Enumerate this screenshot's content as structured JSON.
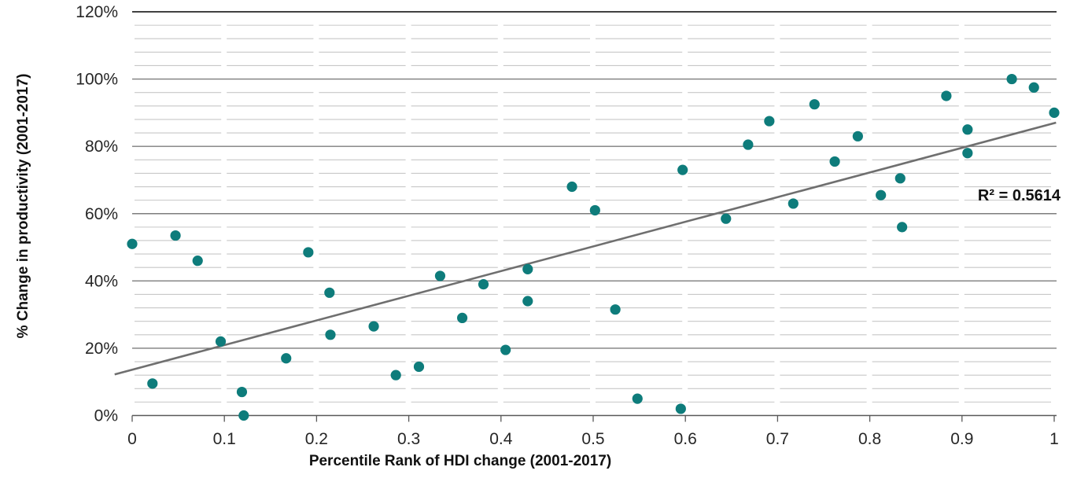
{
  "chart_data": {
    "type": "scatter",
    "title": "",
    "xlabel": "Percentile Rank of HDI change (2001-2017)",
    "ylabel": "% Change in productivity (2001-2017)",
    "legend": "none",
    "grid": "horizontal major + minor, no vertical gridlines",
    "xlim": [
      0,
      1
    ],
    "ylim_pct": [
      0,
      120
    ],
    "x_ticks": [
      "0",
      "0.1",
      "0.2",
      "0.3",
      "0.4",
      "0.5",
      "0.6",
      "0.7",
      "0.8",
      "0.9",
      "1"
    ],
    "y_ticks": [
      "0%",
      "20%",
      "40%",
      "60%",
      "80%",
      "100%",
      "120%"
    ],
    "y_major_step_pct": 20,
    "y_minor_step_pct": 4,
    "points": [
      [
        0.0,
        51.0
      ],
      [
        0.022,
        9.5
      ],
      [
        0.047,
        53.5
      ],
      [
        0.071,
        46.0
      ],
      [
        0.096,
        22.0
      ],
      [
        0.119,
        7.0
      ],
      [
        0.121,
        0.0
      ],
      [
        0.167,
        17.0
      ],
      [
        0.191,
        48.5
      ],
      [
        0.214,
        36.5
      ],
      [
        0.215,
        24.0
      ],
      [
        0.262,
        26.5
      ],
      [
        0.286,
        12.0
      ],
      [
        0.311,
        14.5
      ],
      [
        0.334,
        41.5
      ],
      [
        0.358,
        29.0
      ],
      [
        0.381,
        39.0
      ],
      [
        0.405,
        19.5
      ],
      [
        0.429,
        43.5
      ],
      [
        0.429,
        34.0
      ],
      [
        0.477,
        68.0
      ],
      [
        0.502,
        61.0
      ],
      [
        0.524,
        31.5
      ],
      [
        0.548,
        5.0
      ],
      [
        0.595,
        2.0
      ],
      [
        0.597,
        73.0
      ],
      [
        0.644,
        58.5
      ],
      [
        0.668,
        80.5
      ],
      [
        0.691,
        87.5
      ],
      [
        0.717,
        63.0
      ],
      [
        0.74,
        92.5
      ],
      [
        0.762,
        75.5
      ],
      [
        0.787,
        83.0
      ],
      [
        0.812,
        65.5
      ],
      [
        0.833,
        70.5
      ],
      [
        0.835,
        56.0
      ],
      [
        0.883,
        95.0
      ],
      [
        0.906,
        85.0
      ],
      [
        0.906,
        78.0
      ],
      [
        0.954,
        100.0
      ],
      [
        0.978,
        97.5
      ],
      [
        1.0,
        90.0
      ]
    ],
    "trendline": {
      "type": "linear",
      "slope_pct_per_unit": 73.3,
      "intercept_pct": 13.6,
      "x_start": -0.019,
      "x_end": 1.002,
      "r_squared": 0.5614,
      "label": "R² = 0.5614"
    },
    "colors": {
      "point": "#0E7C7B",
      "trendline": "#6F6F6F",
      "major_gridline": "#7D7D7D",
      "minor_gridline": "#C7C7C7",
      "top_border_line": "#262626",
      "axis_line": "#595959",
      "tick_text": "#262626",
      "title_text": "#111111"
    }
  }
}
